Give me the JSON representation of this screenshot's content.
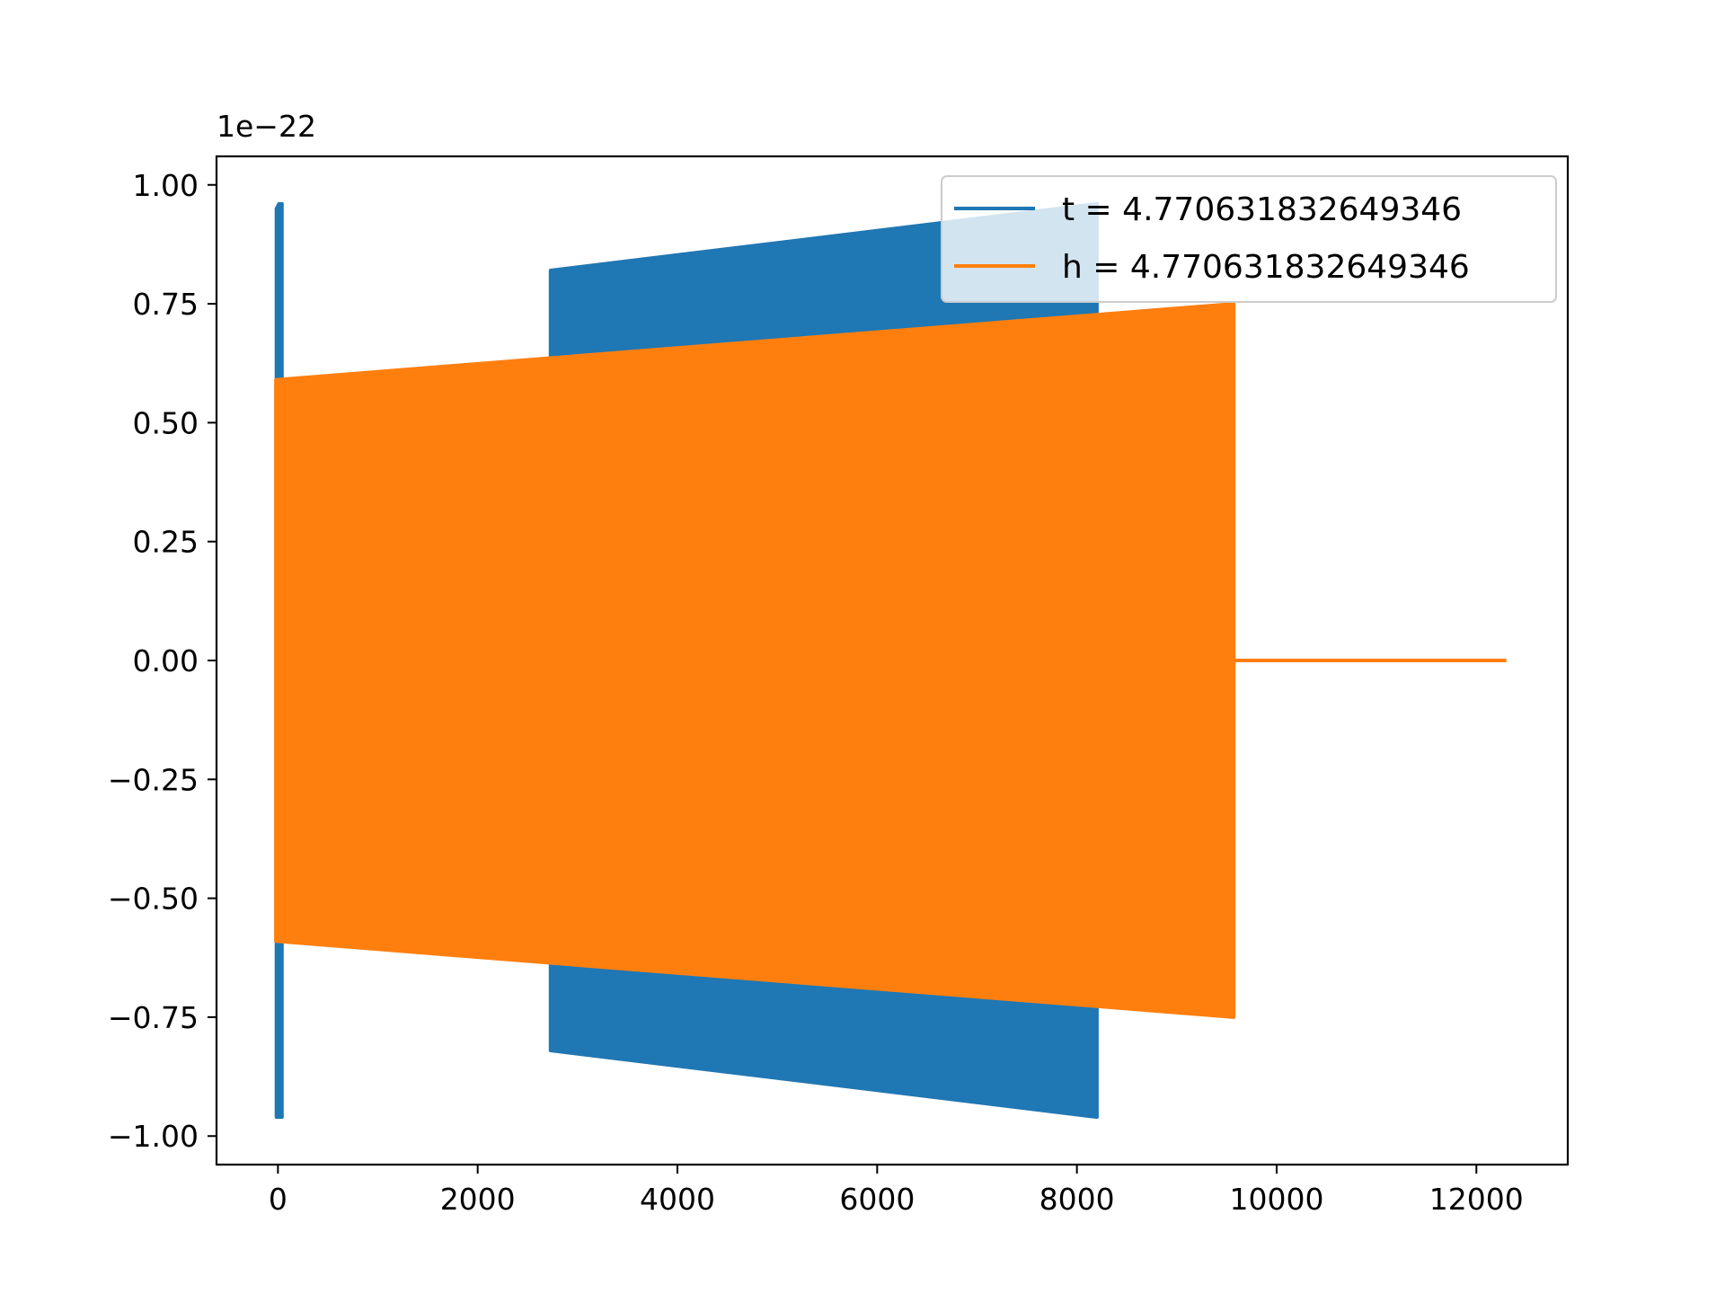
{
  "chart_data": {
    "type": "line",
    "title": "",
    "xlabel": "",
    "ylabel": "",
    "y_offset_text": "1e−22",
    "xlim": [
      -615,
      12915
    ],
    "ylim": [
      -1.06,
      1.06
    ],
    "x_ticks": [
      0,
      2000,
      4000,
      6000,
      8000,
      10000,
      12000
    ],
    "x_tick_labels": [
      "0",
      "2000",
      "4000",
      "6000",
      "8000",
      "10000",
      "12000"
    ],
    "y_ticks": [
      1.0,
      0.75,
      0.5,
      0.25,
      0.0,
      -0.25,
      -0.5,
      -0.75,
      -1.0
    ],
    "y_tick_labels": [
      "1.00",
      "0.75",
      "0.50",
      "0.25",
      "0.00",
      "−0.25",
      "−0.50",
      "−0.75",
      "−1.00"
    ],
    "grid": false,
    "legend_position": "top-right",
    "series": [
      {
        "name": "t = 4.770631832649346",
        "color": "#1f77b4",
        "envelope_segments": [
          {
            "x": [
              -15,
              10,
              40
            ],
            "upper": [
              0.95,
              0.96,
              0.96
            ],
            "lower": [
              -0.96,
              -0.96,
              -0.96
            ]
          },
          {
            "x": [
              2730,
              8200
            ],
            "upper": [
              0.82,
              0.96
            ],
            "lower": [
              -0.82,
              -0.96
            ]
          }
        ]
      },
      {
        "name": "h = 4.770631832649346",
        "color": "#ff7f0e",
        "envelope_segments": [
          {
            "x": [
              -20,
              9570
            ],
            "upper": [
              0.59,
              0.75
            ],
            "lower": [
              -0.59,
              -0.75
            ]
          }
        ],
        "flat_segment": {
          "x": [
            9570,
            12300
          ],
          "y": 0.0
        }
      }
    ]
  }
}
